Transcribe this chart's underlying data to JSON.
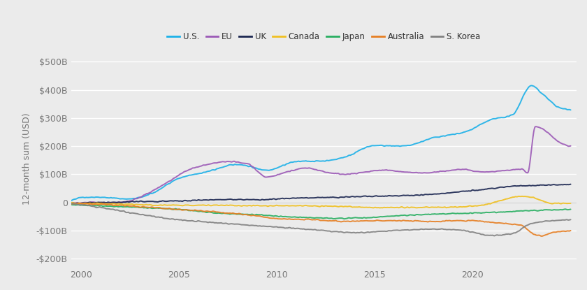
{
  "ylabel": "12-month sum (USD)",
  "background_color": "#ebebeb",
  "plot_bg_color": "#ebebeb",
  "grid_color": "#ffffff",
  "xlim": [
    1999.5,
    2025.3
  ],
  "ylim": [
    -230000000000.0,
    540000000000.0
  ],
  "yticks": [
    -200000000000.0,
    -100000000000.0,
    0,
    100000000000.0,
    200000000000.0,
    300000000000.0,
    400000000000.0,
    500000000000.0
  ],
  "ytick_labels": [
    "-$200B",
    "-$100B",
    "0",
    "$100B",
    "$200B",
    "$300B",
    "$400B",
    "$500B"
  ],
  "xticks": [
    2000,
    2005,
    2010,
    2015,
    2020
  ],
  "legend_labels": [
    "U.S.",
    "EU",
    "UK",
    "Canada",
    "Japan",
    "Australia",
    "S. Korea"
  ],
  "legend_colors": [
    "#1ab0e8",
    "#9b59b6",
    "#1a2550",
    "#f0c020",
    "#27ae60",
    "#e67e22",
    "#808080"
  ],
  "series": {
    "U.S.": {
      "color": "#1ab0e8",
      "linewidth": 1.4,
      "nodes_x": [
        1999.5,
        2000.0,
        2001.0,
        2002.5,
        2003.5,
        2005.0,
        2006.5,
        2008.0,
        2009.5,
        2011.0,
        2012.5,
        2013.5,
        2015.0,
        2016.5,
        2018.0,
        2019.5,
        2021.0,
        2022.0,
        2023.0,
        2023.5,
        2024.5,
        2025.0
      ],
      "nodes_y": [
        5,
        18,
        18,
        12,
        28,
        85,
        110,
        135,
        115,
        145,
        148,
        162,
        202,
        200,
        230,
        248,
        295,
        310,
        415,
        390,
        335,
        330
      ]
    },
    "EU": {
      "color": "#9b59b6",
      "linewidth": 1.4,
      "nodes_x": [
        1999.5,
        2000.5,
        2001.5,
        2002.5,
        2003.5,
        2004.5,
        2005.5,
        2006.5,
        2007.5,
        2008.5,
        2009.5,
        2010.5,
        2011.5,
        2012.5,
        2013.5,
        2014.5,
        2015.5,
        2016.5,
        2017.5,
        2018.5,
        2019.5,
        2020.5,
        2021.5,
        2022.5,
        2022.8,
        2023.2,
        2023.8,
        2024.5,
        2025.0
      ],
      "nodes_y": [
        -3,
        0,
        -3,
        5,
        35,
        75,
        115,
        135,
        145,
        138,
        90,
        108,
        122,
        108,
        100,
        108,
        115,
        108,
        105,
        110,
        118,
        108,
        112,
        118,
        105,
        270,
        250,
        210,
        200
      ]
    },
    "UK": {
      "color": "#1a2550",
      "linewidth": 1.4,
      "nodes_x": [
        1999.5,
        2001.0,
        2003.0,
        2005.0,
        2007.0,
        2009.0,
        2011.0,
        2013.0,
        2015.0,
        2017.0,
        2018.5,
        2020.0,
        2021.0,
        2022.0,
        2023.0,
        2024.0,
        2025.0
      ],
      "nodes_y": [
        -3,
        -1,
        3,
        5,
        10,
        10,
        15,
        18,
        22,
        25,
        32,
        42,
        50,
        58,
        60,
        62,
        63
      ]
    },
    "Canada": {
      "color": "#f0c020",
      "linewidth": 1.4,
      "nodes_x": [
        1999.5,
        2001.0,
        2003.0,
        2005.0,
        2007.0,
        2009.0,
        2011.0,
        2013.0,
        2015.0,
        2017.0,
        2019.0,
        2020.5,
        2021.5,
        2022.5,
        2023.0,
        2024.0,
        2025.0
      ],
      "nodes_y": [
        -2,
        -4,
        -8,
        -10,
        -10,
        -12,
        -12,
        -14,
        -18,
        -18,
        -17,
        -10,
        8,
        22,
        18,
        -3,
        -4
      ]
    },
    "Japan": {
      "color": "#27ae60",
      "linewidth": 1.4,
      "nodes_x": [
        1999.5,
        2001.0,
        2003.0,
        2005.0,
        2007.0,
        2009.0,
        2011.0,
        2013.0,
        2014.5,
        2016.0,
        2018.0,
        2020.0,
        2022.0,
        2023.5,
        2025.0
      ],
      "nodes_y": [
        -8,
        -12,
        -18,
        -25,
        -38,
        -44,
        -52,
        -57,
        -55,
        -48,
        -42,
        -38,
        -32,
        -28,
        -25
      ]
    },
    "Australia": {
      "color": "#e67e22",
      "linewidth": 1.4,
      "nodes_x": [
        1999.5,
        2001.0,
        2003.0,
        2005.0,
        2007.0,
        2009.0,
        2010.0,
        2012.0,
        2013.5,
        2015.0,
        2016.5,
        2018.0,
        2019.0,
        2020.0,
        2021.0,
        2022.5,
        2023.0,
        2023.5,
        2024.0,
        2025.0
      ],
      "nodes_y": [
        -4,
        -7,
        -15,
        -25,
        -35,
        -48,
        -58,
        -62,
        -68,
        -65,
        -65,
        -68,
        -65,
        -65,
        -72,
        -82,
        -108,
        -120,
        -108,
        -102
      ]
    },
    "S. Korea": {
      "color": "#808080",
      "linewidth": 1.4,
      "nodes_x": [
        1999.5,
        2001.0,
        2003.0,
        2004.5,
        2006.0,
        2008.0,
        2010.0,
        2012.0,
        2014.0,
        2016.0,
        2018.0,
        2019.5,
        2021.0,
        2022.0,
        2023.0,
        2024.0,
        2025.0
      ],
      "nodes_y": [
        -5,
        -18,
        -42,
        -58,
        -68,
        -78,
        -88,
        -98,
        -108,
        -100,
        -95,
        -100,
        -118,
        -112,
        -75,
        -65,
        -62
      ]
    }
  }
}
